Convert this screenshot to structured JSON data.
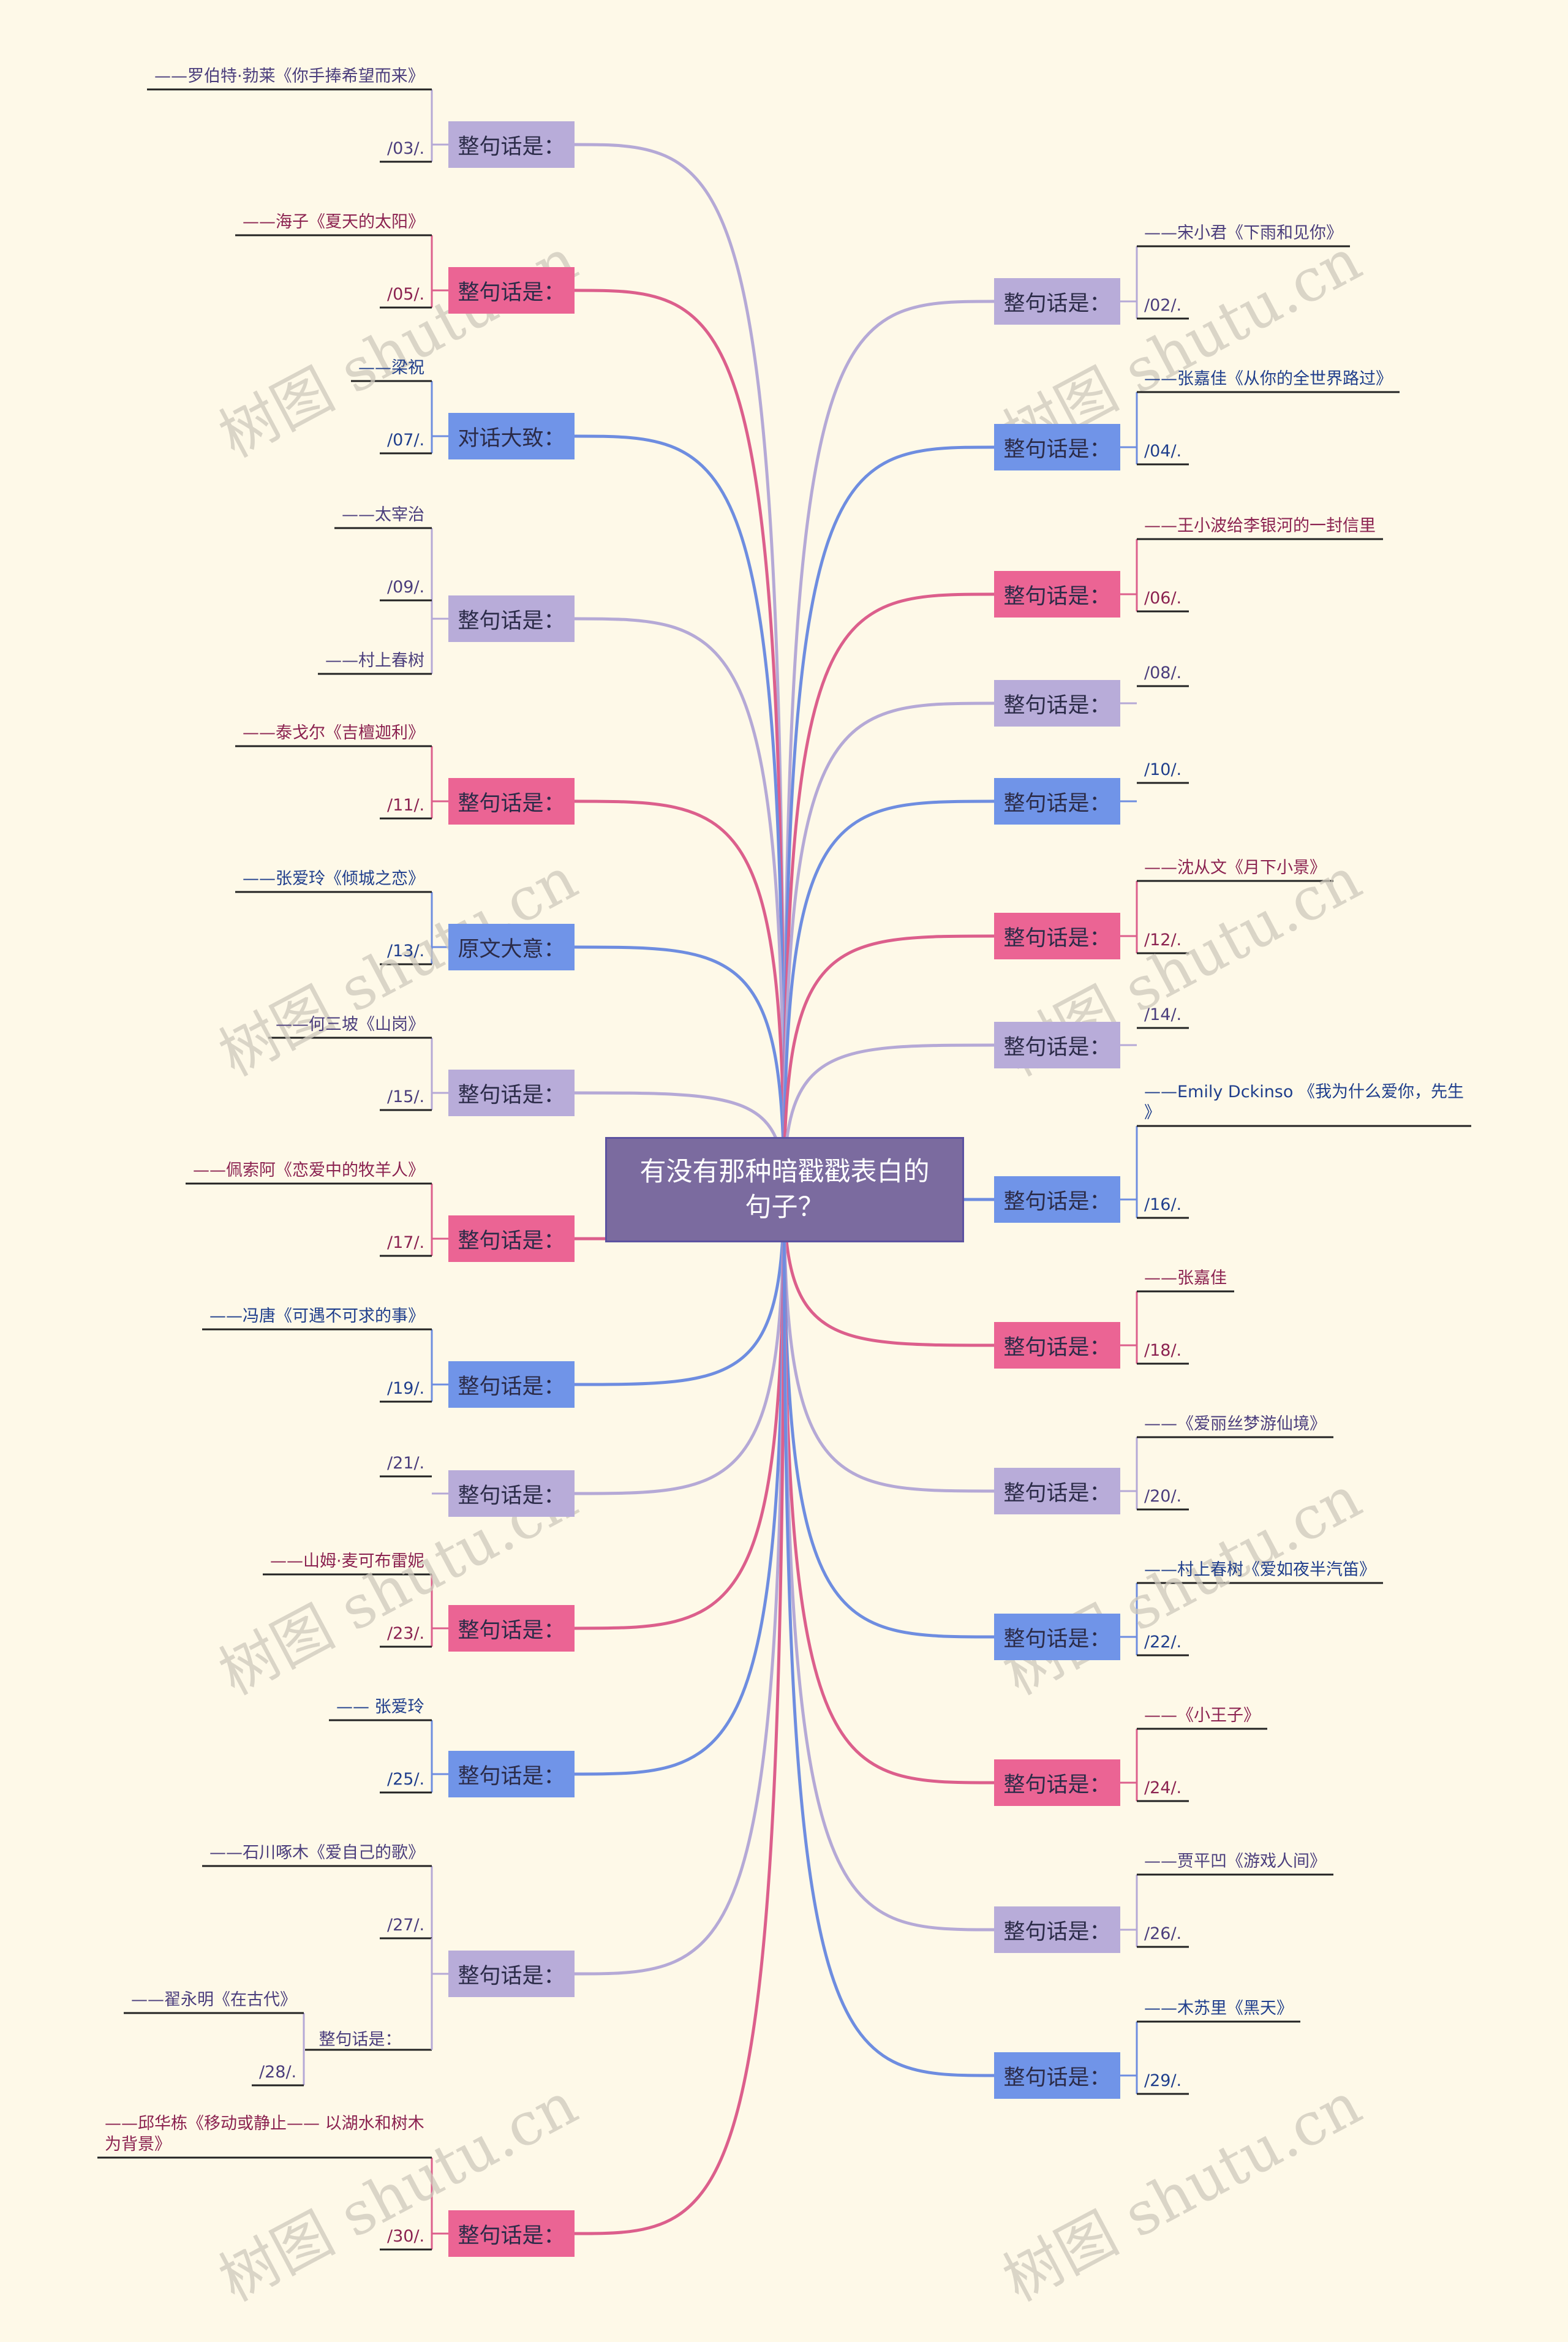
{
  "center": {
    "line1": "有没有那种暗戳戳表白的",
    "line2": "句子？"
  },
  "colors": {
    "purple": "#b8acd9",
    "pink": "#eb6494",
    "blue": "#7094e8",
    "purple_line": "#b5a9d6",
    "pink_line": "#dc5f8c",
    "blue_line": "#6e8de0",
    "leaf_purple": "#4a3d7c",
    "leaf_pink": "#8b2250",
    "leaf_blue": "#1f3e8c"
  },
  "watermark": "树图 shutu.cn",
  "left_branches": [
    {
      "label": "整句话是：",
      "color": "purple",
      "leaves": [
        "——罗伯特·勃莱《你手捧希望而来》",
        "/03/."
      ]
    },
    {
      "label": "整句话是：",
      "color": "pink",
      "leaves": [
        "——海子《夏天的太阳》",
        "/05/."
      ]
    },
    {
      "label": "对话大致：",
      "color": "blue",
      "leaves": [
        "——梁祝",
        "/07/."
      ]
    },
    {
      "label": "整句话是：",
      "color": "purple",
      "leaves": [
        "——太宰治",
        "/09/.",
        "——村上春树"
      ]
    },
    {
      "label": "整句话是：",
      "color": "pink",
      "leaves": [
        "——泰戈尔《吉檀迦利》",
        "/11/."
      ]
    },
    {
      "label": "原文大意：",
      "color": "blue",
      "leaves": [
        "——张爱玲《倾城之恋》",
        "/13/."
      ]
    },
    {
      "label": "整句话是：",
      "color": "purple",
      "leaves": [
        "——何三坡《山岗》",
        "/15/."
      ]
    },
    {
      "label": "整句话是：",
      "color": "pink",
      "leaves": [
        "——佩索阿《恋爱中的牧羊人》",
        "/17/."
      ]
    },
    {
      "label": "整句话是：",
      "color": "blue",
      "leaves": [
        "——冯唐《可遇不可求的事》",
        "/19/."
      ]
    },
    {
      "label": "整句话是：",
      "color": "purple",
      "leaves": [
        "/21/."
      ]
    },
    {
      "label": "整句话是：",
      "color": "pink",
      "leaves": [
        "——山姆·麦可布雷妮",
        "/23/."
      ]
    },
    {
      "label": "整句话是：",
      "color": "blue",
      "leaves": [
        "—— 张爱玲",
        "/25/."
      ]
    },
    {
      "label": "整句话是：",
      "color": "purple",
      "leaves": [
        "——石川啄木《爱自己的歌》",
        "/27/."
      ],
      "sub": {
        "label": "整句话是：",
        "leaves": [
          "——翟永明《在古代》",
          "/28/."
        ]
      }
    },
    {
      "label": "整句话是：",
      "color": "pink",
      "leaves": [
        "——邱华栋《移动或静止—— 以湖水和树木\n为背景》",
        "/30/."
      ]
    }
  ],
  "right_branches": [
    {
      "label": "整句话是：",
      "color": "purple",
      "leaves": [
        "——宋小君《下雨和见你》",
        "/02/."
      ]
    },
    {
      "label": "整句话是：",
      "color": "blue",
      "leaves": [
        "——张嘉佳《从你的全世界路过》",
        "/04/."
      ]
    },
    {
      "label": "整句话是：",
      "color": "pink",
      "leaves": [
        "——王小波给李银河的一封信里",
        "/06/."
      ]
    },
    {
      "label": "整句话是：",
      "color": "purple",
      "leaves": [
        "/08/."
      ]
    },
    {
      "label": "整句话是：",
      "color": "blue",
      "leaves": [
        "/10/."
      ]
    },
    {
      "label": "整句话是：",
      "color": "pink",
      "leaves": [
        "——沈从文《月下小景》",
        "/12/."
      ]
    },
    {
      "label": "整句话是：",
      "color": "purple",
      "leaves": [
        "/14/."
      ]
    },
    {
      "label": "整句话是：",
      "color": "blue",
      "leaves": [
        "——Emily Dckinso 《我为什么爱你，先生\n》",
        "/16/."
      ]
    },
    {
      "label": "整句话是：",
      "color": "pink",
      "leaves": [
        "——张嘉佳",
        "/18/."
      ]
    },
    {
      "label": "整句话是：",
      "color": "purple",
      "leaves": [
        "——《爱丽丝梦游仙境》",
        "/20/."
      ]
    },
    {
      "label": "整句话是：",
      "color": "blue",
      "leaves": [
        "——村上春树《爱如夜半汽笛》",
        "/22/."
      ]
    },
    {
      "label": "整句话是：",
      "color": "pink",
      "leaves": [
        "——《小王子》",
        "/24/."
      ]
    },
    {
      "label": "整句话是：",
      "color": "purple",
      "leaves": [
        "——贾平凹《游戏人间》",
        "/26/."
      ]
    },
    {
      "label": "整句话是：",
      "color": "blue",
      "leaves": [
        "——木苏里《黑天》",
        "/29/."
      ]
    }
  ]
}
